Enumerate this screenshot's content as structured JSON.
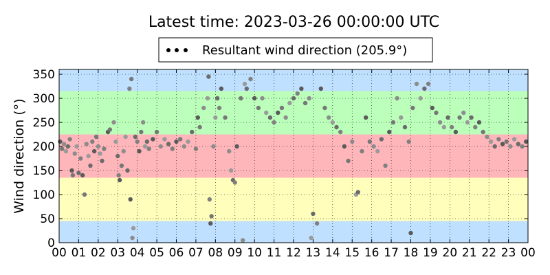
{
  "title": "Latest time: 2023-03-26 00:00:00 UTC",
  "chart_data": {
    "type": "scatter",
    "ylabel": "Wind direction (°)",
    "xlabel": "",
    "xlim": [
      0,
      24
    ],
    "ylim": [
      0,
      360
    ],
    "grid": true,
    "x_tick_labels": [
      "00",
      "01",
      "02",
      "03",
      "04",
      "05",
      "06",
      "07",
      "08",
      "09",
      "10",
      "11",
      "12",
      "13",
      "14",
      "15",
      "16",
      "17",
      "18",
      "19",
      "20",
      "21",
      "22",
      "23",
      "00"
    ],
    "y_ticks": [
      0,
      50,
      100,
      150,
      200,
      250,
      300,
      350
    ],
    "legend": {
      "label": "Resultant wind direction (205.9°)",
      "position": "top-center"
    },
    "bands": [
      {
        "from": 0,
        "to": 45,
        "color": "#bfe0ff"
      },
      {
        "from": 45,
        "to": 135,
        "color": "#ffffbb"
      },
      {
        "from": 135,
        "to": 225,
        "color": "#ffb6bb"
      },
      {
        "from": 225,
        "to": 315,
        "color": "#bbffbb"
      },
      {
        "from": 315,
        "to": 360,
        "color": "#bfe0ff"
      }
    ],
    "series": [
      {
        "values": [
          [
            0.05,
            210
          ],
          [
            0.15,
            195
          ],
          [
            0.25,
            205
          ],
          [
            0.35,
            190
          ],
          [
            0.45,
            200
          ],
          [
            0.55,
            215
          ],
          [
            0.65,
            150
          ],
          [
            0.7,
            140
          ],
          [
            0.8,
            185
          ],
          [
            0.9,
            200
          ],
          [
            1.0,
            145
          ],
          [
            1.1,
            175
          ],
          [
            1.2,
            140
          ],
          [
            1.3,
            100
          ],
          [
            1.4,
            205
          ],
          [
            1.5,
            180
          ],
          [
            1.6,
            160
          ],
          [
            1.7,
            210
          ],
          [
            1.8,
            190
          ],
          [
            1.9,
            220
          ],
          [
            2.0,
            200
          ],
          [
            2.1,
            185
          ],
          [
            2.2,
            170
          ],
          [
            2.3,
            195
          ],
          [
            2.5,
            230
          ],
          [
            2.6,
            235
          ],
          [
            2.8,
            250
          ],
          [
            2.9,
            210
          ],
          [
            3.0,
            180
          ],
          [
            3.05,
            140
          ],
          [
            3.1,
            130
          ],
          [
            3.2,
            160
          ],
          [
            3.3,
            190
          ],
          [
            3.4,
            220
          ],
          [
            3.5,
            150
          ],
          [
            3.6,
            320
          ],
          [
            3.65,
            90
          ],
          [
            3.7,
            340
          ],
          [
            3.75,
            10
          ],
          [
            3.8,
            30
          ],
          [
            3.9,
            220
          ],
          [
            4.0,
            210
          ],
          [
            4.1,
            190
          ],
          [
            4.2,
            230
          ],
          [
            4.3,
            250
          ],
          [
            4.4,
            200
          ],
          [
            4.5,
            210
          ],
          [
            4.6,
            195
          ],
          [
            4.8,
            215
          ],
          [
            5.0,
            230
          ],
          [
            5.2,
            200
          ],
          [
            5.4,
            215
          ],
          [
            5.6,
            205
          ],
          [
            5.8,
            195
          ],
          [
            6.0,
            210
          ],
          [
            6.2,
            215
          ],
          [
            6.4,
            200
          ],
          [
            6.6,
            210
          ],
          [
            6.8,
            230
          ],
          [
            7.0,
            195
          ],
          [
            7.1,
            260
          ],
          [
            7.2,
            240
          ],
          [
            7.4,
            280
          ],
          [
            7.6,
            300
          ],
          [
            7.65,
            345
          ],
          [
            7.7,
            90
          ],
          [
            7.75,
            40
          ],
          [
            7.8,
            55
          ],
          [
            7.9,
            200
          ],
          [
            8.0,
            260
          ],
          [
            8.1,
            300
          ],
          [
            8.2,
            280
          ],
          [
            8.3,
            320
          ],
          [
            8.5,
            260
          ],
          [
            8.7,
            190
          ],
          [
            8.8,
            150
          ],
          [
            8.9,
            130
          ],
          [
            9.0,
            125
          ],
          [
            9.1,
            200
          ],
          [
            9.3,
            300
          ],
          [
            9.4,
            5
          ],
          [
            9.5,
            330
          ],
          [
            9.6,
            320
          ],
          [
            9.8,
            340
          ],
          [
            10.0,
            300
          ],
          [
            10.2,
            280
          ],
          [
            10.4,
            300
          ],
          [
            10.6,
            270
          ],
          [
            10.8,
            260
          ],
          [
            11.0,
            250
          ],
          [
            11.2,
            270
          ],
          [
            11.4,
            280
          ],
          [
            11.6,
            260
          ],
          [
            11.8,
            290
          ],
          [
            12.0,
            300
          ],
          [
            12.2,
            310
          ],
          [
            12.4,
            320
          ],
          [
            12.6,
            290
          ],
          [
            12.8,
            300
          ],
          [
            12.9,
            10
          ],
          [
            13.0,
            60
          ],
          [
            13.2,
            40
          ],
          [
            13.4,
            320
          ],
          [
            13.6,
            280
          ],
          [
            13.8,
            260
          ],
          [
            14.0,
            250
          ],
          [
            14.2,
            240
          ],
          [
            14.4,
            230
          ],
          [
            14.6,
            200
          ],
          [
            14.8,
            170
          ],
          [
            15.0,
            210
          ],
          [
            15.2,
            100
          ],
          [
            15.3,
            105
          ],
          [
            15.5,
            190
          ],
          [
            15.7,
            260
          ],
          [
            15.9,
            210
          ],
          [
            16.1,
            200
          ],
          [
            16.3,
            190
          ],
          [
            16.5,
            215
          ],
          [
            16.7,
            160
          ],
          [
            16.9,
            230
          ],
          [
            17.1,
            250
          ],
          [
            17.3,
            300
          ],
          [
            17.5,
            260
          ],
          [
            17.7,
            240
          ],
          [
            17.9,
            210
          ],
          [
            18.0,
            20
          ],
          [
            18.1,
            280
          ],
          [
            18.3,
            330
          ],
          [
            18.5,
            300
          ],
          [
            18.7,
            320
          ],
          [
            18.9,
            330
          ],
          [
            19.1,
            280
          ],
          [
            19.3,
            270
          ],
          [
            19.5,
            250
          ],
          [
            19.7,
            240
          ],
          [
            19.9,
            260
          ],
          [
            20.1,
            240
          ],
          [
            20.3,
            230
          ],
          [
            20.5,
            260
          ],
          [
            20.7,
            270
          ],
          [
            20.9,
            250
          ],
          [
            21.1,
            260
          ],
          [
            21.3,
            240
          ],
          [
            21.5,
            250
          ],
          [
            21.7,
            230
          ],
          [
            21.9,
            220
          ],
          [
            22.1,
            210
          ],
          [
            22.3,
            200
          ],
          [
            22.5,
            215
          ],
          [
            22.7,
            205
          ],
          [
            22.9,
            210
          ],
          [
            23.1,
            200
          ],
          [
            23.3,
            215
          ],
          [
            23.5,
            205
          ],
          [
            23.7,
            200
          ],
          [
            23.9,
            210
          ]
        ]
      }
    ]
  }
}
